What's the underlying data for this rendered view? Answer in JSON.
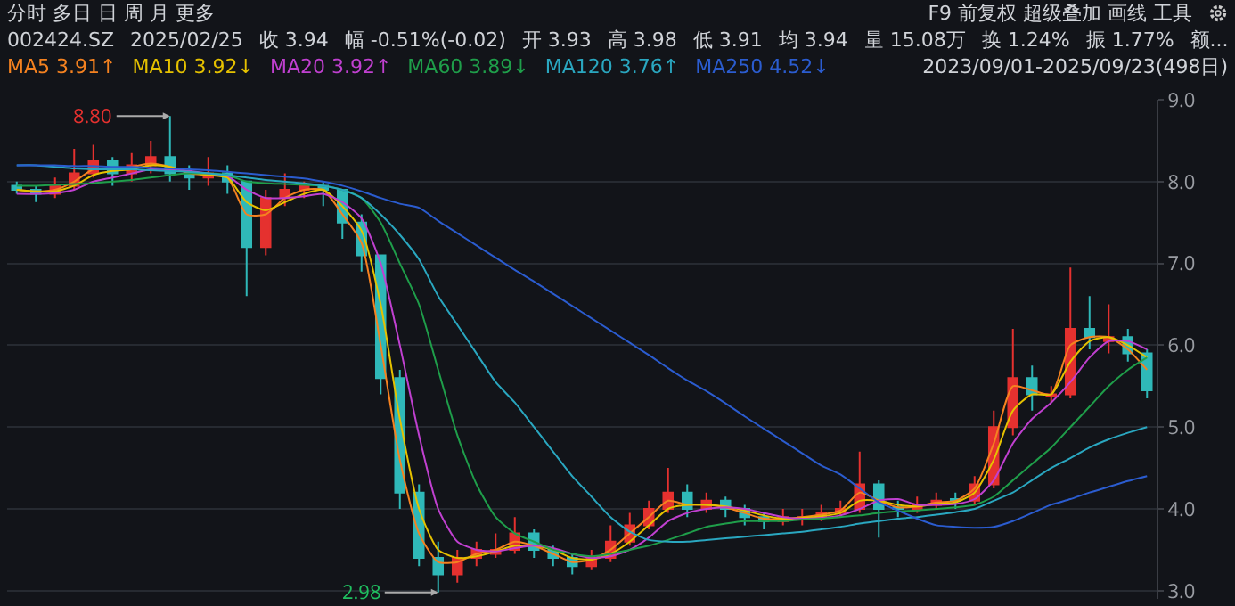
{
  "chart_data": {
    "type": "candlestick",
    "title": "002424.SZ",
    "subtitle": "2023/09/01-2025/09/23(498日)",
    "annotations": [
      "分时  多日  日  周  月  更多",
      "F9  前复权  超级叠加  画线  工具",
      "2025/02/25",
      "收 3.94",
      "幅 -0.51%(-0.02)",
      "开 3.93",
      "高 3.98",
      "低 3.91",
      "均 3.94",
      "量 15.08万",
      "换 1.24%",
      "振 1.77%",
      "额...",
      "8.80",
      "2.98"
    ],
    "categories": [
      null,
      null,
      null,
      null,
      null,
      null,
      null,
      null,
      null,
      null,
      null,
      null,
      null,
      null,
      null,
      null,
      null,
      null,
      null,
      null,
      null,
      null,
      null,
      null,
      null,
      null,
      null,
      null,
      null,
      null,
      null,
      null,
      null,
      null,
      null,
      null,
      null,
      null,
      null,
      null,
      null,
      null,
      null,
      null,
      null,
      null,
      null,
      null,
      null,
      null,
      null,
      null,
      null,
      null,
      null,
      null,
      null,
      null,
      null,
      null
    ],
    "ohlc": [
      [
        7.95,
        8.0,
        7.85,
        7.9
      ],
      [
        7.9,
        7.95,
        7.75,
        7.85
      ],
      [
        7.85,
        8.05,
        7.8,
        7.95
      ],
      [
        7.95,
        8.4,
        7.9,
        8.1
      ],
      [
        8.1,
        8.45,
        8.05,
        8.25
      ],
      [
        8.25,
        8.3,
        7.95,
        8.1
      ],
      [
        8.1,
        8.35,
        8.0,
        8.2
      ],
      [
        8.2,
        8.5,
        8.1,
        8.3
      ],
      [
        8.3,
        8.8,
        8.0,
        8.1
      ],
      [
        8.1,
        8.2,
        7.9,
        8.05
      ],
      [
        8.05,
        8.3,
        7.95,
        8.1
      ],
      [
        8.1,
        8.2,
        7.85,
        8.0
      ],
      [
        8.0,
        8.0,
        6.6,
        7.2
      ],
      [
        7.2,
        7.9,
        7.1,
        7.8
      ],
      [
        7.8,
        8.1,
        7.7,
        7.9
      ],
      [
        7.9,
        8.0,
        7.8,
        7.95
      ],
      [
        7.95,
        8.0,
        7.7,
        7.9
      ],
      [
        7.9,
        7.9,
        7.3,
        7.5
      ],
      [
        7.5,
        7.6,
        6.9,
        7.1
      ],
      [
        7.1,
        7.1,
        5.4,
        5.6
      ],
      [
        5.6,
        5.7,
        4.0,
        4.2
      ],
      [
        4.2,
        4.3,
        3.3,
        3.4
      ],
      [
        3.4,
        3.6,
        2.98,
        3.2
      ],
      [
        3.2,
        3.5,
        3.1,
        3.4
      ],
      [
        3.4,
        3.6,
        3.3,
        3.5
      ],
      [
        3.45,
        3.7,
        3.4,
        3.5
      ],
      [
        3.5,
        3.9,
        3.45,
        3.7
      ],
      [
        3.7,
        3.75,
        3.4,
        3.5
      ],
      [
        3.5,
        3.55,
        3.3,
        3.4
      ],
      [
        3.4,
        3.45,
        3.2,
        3.3
      ],
      [
        3.3,
        3.5,
        3.25,
        3.4
      ],
      [
        3.4,
        3.8,
        3.35,
        3.6
      ],
      [
        3.6,
        3.95,
        3.55,
        3.8
      ],
      [
        3.8,
        4.1,
        3.75,
        4.0
      ],
      [
        4.0,
        4.5,
        3.95,
        4.2
      ],
      [
        4.2,
        4.3,
        3.9,
        4.0
      ],
      [
        4.0,
        4.2,
        3.95,
        4.1
      ],
      [
        4.1,
        4.15,
        3.9,
        4.0
      ],
      [
        4.0,
        4.05,
        3.8,
        3.9
      ],
      [
        3.9,
        3.95,
        3.75,
        3.85
      ],
      [
        3.85,
        4.0,
        3.8,
        3.9
      ],
      [
        3.88,
        4.0,
        3.8,
        3.9
      ],
      [
        3.9,
        4.05,
        3.85,
        3.95
      ],
      [
        3.95,
        4.1,
        3.9,
        4.0
      ],
      [
        4.0,
        4.7,
        3.95,
        4.3
      ],
      [
        4.3,
        4.35,
        3.65,
        4.0
      ],
      [
        4.02,
        4.1,
        3.9,
        4.0
      ],
      [
        4.0,
        4.15,
        3.95,
        4.05
      ],
      [
        4.05,
        4.2,
        4.0,
        4.1
      ],
      [
        4.12,
        4.2,
        4.0,
        4.1
      ],
      [
        4.1,
        4.4,
        4.05,
        4.3
      ],
      [
        4.3,
        5.2,
        4.25,
        5.0
      ],
      [
        5.0,
        6.2,
        4.9,
        5.6
      ],
      [
        5.6,
        5.75,
        5.2,
        5.4
      ],
      [
        5.38,
        5.5,
        5.3,
        5.4
      ],
      [
        5.4,
        6.95,
        5.35,
        6.2
      ],
      [
        6.2,
        6.6,
        5.95,
        6.1
      ],
      [
        6.05,
        6.5,
        5.9,
        6.1
      ],
      [
        6.1,
        6.2,
        5.8,
        5.9
      ],
      [
        5.9,
        5.95,
        5.35,
        5.45
      ]
    ],
    "colors": [
      "#2fb8b8",
      "#2fb8b8",
      "#e5312f",
      "#e5312f",
      "#e5312f",
      "#2fb8b8",
      "#e5312f",
      "#e5312f",
      "#2fb8b8",
      "#2fb8b8",
      "#e5312f",
      "#2fb8b8",
      "#2fb8b8",
      "#e5312f",
      "#e5312f",
      "#e5312f",
      "#2fb8b8",
      "#2fb8b8",
      "#2fb8b8",
      "#2fb8b8",
      "#2fb8b8",
      "#2fb8b8",
      "#2fb8b8",
      "#e5312f",
      "#e5312f",
      "#e5312f",
      "#e5312f",
      "#2fb8b8",
      "#2fb8b8",
      "#2fb8b8",
      "#e5312f",
      "#e5312f",
      "#e5312f",
      "#e5312f",
      "#e5312f",
      "#2fb8b8",
      "#e5312f",
      "#2fb8b8",
      "#2fb8b8",
      "#2fb8b8",
      "#e5312f",
      "#e5312f",
      "#e5312f",
      "#e5312f",
      "#e5312f",
      "#2fb8b8",
      "#2fb8b8",
      "#e5312f",
      "#e5312f",
      "#2fb8b8",
      "#e5312f",
      "#e5312f",
      "#e5312f",
      "#2fb8b8",
      "#e5312f",
      "#e5312f",
      "#2fb8b8",
      "#e5312f",
      "#2fb8b8",
      "#2fb8b8"
    ],
    "series": [
      {
        "name": "MA5 3.91↑",
        "type": "line",
        "color": "#f58220",
        "values": [
          7.9,
          7.88,
          7.9,
          8.0,
          8.15,
          8.15,
          8.18,
          8.22,
          8.18,
          8.1,
          8.08,
          8.05,
          7.6,
          7.6,
          7.8,
          7.9,
          7.9,
          7.6,
          7.25,
          6.0,
          4.6,
          3.7,
          3.35,
          3.35,
          3.45,
          3.5,
          3.6,
          3.55,
          3.45,
          3.35,
          3.38,
          3.5,
          3.7,
          3.9,
          4.1,
          4.05,
          4.05,
          4.02,
          3.95,
          3.88,
          3.88,
          3.9,
          3.93,
          3.98,
          4.2,
          4.1,
          4.02,
          4.03,
          4.08,
          4.1,
          4.25,
          4.8,
          5.5,
          5.45,
          5.4,
          6.0,
          6.1,
          6.1,
          5.95,
          5.7
        ]
      },
      {
        "name": "MA10 3.92↓",
        "type": "line",
        "color": "#e5c100",
        "values": [
          7.9,
          7.88,
          7.88,
          7.95,
          8.08,
          8.13,
          8.15,
          8.2,
          8.18,
          8.12,
          8.08,
          8.05,
          7.75,
          7.65,
          7.75,
          7.85,
          7.9,
          7.7,
          7.4,
          6.5,
          5.1,
          4.0,
          3.5,
          3.4,
          3.42,
          3.48,
          3.55,
          3.55,
          3.5,
          3.4,
          3.38,
          3.45,
          3.6,
          3.8,
          4.0,
          4.05,
          4.05,
          4.03,
          3.98,
          3.92,
          3.88,
          3.89,
          3.91,
          3.95,
          4.1,
          4.1,
          4.05,
          4.03,
          4.06,
          4.08,
          4.2,
          4.6,
          5.2,
          5.4,
          5.4,
          5.8,
          6.05,
          6.1,
          6.0,
          5.85
        ]
      },
      {
        "name": "MA20 3.92↑",
        "type": "line",
        "color": "#c040d0",
        "values": [
          7.85,
          7.85,
          7.86,
          7.9,
          8.0,
          8.05,
          8.1,
          8.15,
          8.15,
          8.13,
          8.1,
          8.07,
          7.9,
          7.8,
          7.8,
          7.82,
          7.85,
          7.75,
          7.55,
          7.0,
          6.0,
          4.9,
          4.0,
          3.6,
          3.5,
          3.48,
          3.52,
          3.55,
          3.52,
          3.45,
          3.4,
          3.42,
          3.5,
          3.65,
          3.85,
          3.95,
          4.0,
          4.02,
          4.0,
          3.95,
          3.9,
          3.88,
          3.89,
          3.92,
          4.0,
          4.1,
          4.12,
          4.05,
          4.05,
          4.06,
          4.12,
          4.35,
          4.8,
          5.1,
          5.3,
          5.55,
          5.85,
          6.05,
          6.05,
          5.95
        ]
      },
      {
        "name": "MA60 3.89↓",
        "type": "line",
        "color": "#1f9e4a",
        "values": [
          7.95,
          7.95,
          7.96,
          7.97,
          7.98,
          8.0,
          8.02,
          8.05,
          8.08,
          8.1,
          8.1,
          8.08,
          8.0,
          7.98,
          7.97,
          7.96,
          7.95,
          7.9,
          7.8,
          7.5,
          7.0,
          6.5,
          5.7,
          4.9,
          4.3,
          3.9,
          3.7,
          3.6,
          3.5,
          3.45,
          3.42,
          3.45,
          3.5,
          3.55,
          3.62,
          3.7,
          3.78,
          3.82,
          3.85,
          3.85,
          3.85,
          3.87,
          3.88,
          3.9,
          3.92,
          3.95,
          3.97,
          3.98,
          4.0,
          4.02,
          4.05,
          4.15,
          4.35,
          4.55,
          4.75,
          5.0,
          5.25,
          5.5,
          5.7,
          5.85
        ]
      },
      {
        "name": "MA120 3.76↑",
        "type": "line",
        "color": "#2aa7c0",
        "values": [
          8.2,
          8.2,
          8.18,
          8.16,
          8.15,
          8.15,
          8.15,
          8.14,
          8.13,
          8.12,
          8.1,
          8.08,
          8.05,
          8.02,
          8.0,
          7.98,
          7.95,
          7.9,
          7.8,
          7.6,
          7.35,
          7.05,
          6.6,
          6.25,
          5.9,
          5.55,
          5.3,
          5.0,
          4.7,
          4.4,
          4.15,
          3.9,
          3.72,
          3.62,
          3.6,
          3.6,
          3.62,
          3.64,
          3.66,
          3.68,
          3.7,
          3.72,
          3.75,
          3.78,
          3.82,
          3.85,
          3.88,
          3.9,
          3.93,
          3.96,
          4.0,
          4.1,
          4.2,
          4.35,
          4.5,
          4.62,
          4.75,
          4.85,
          4.93,
          5.0
        ]
      },
      {
        "name": "MA250 4.52↓",
        "type": "line",
        "color": "#2b5ccf",
        "values": [
          8.2,
          8.2,
          8.2,
          8.19,
          8.19,
          8.18,
          8.18,
          8.17,
          8.16,
          8.15,
          8.14,
          8.12,
          8.1,
          8.08,
          8.06,
          8.04,
          8.0,
          7.95,
          7.88,
          7.8,
          7.73,
          7.68,
          7.52,
          7.37,
          7.22,
          7.07,
          6.92,
          6.78,
          6.63,
          6.48,
          6.33,
          6.18,
          6.03,
          5.88,
          5.72,
          5.57,
          5.44,
          5.29,
          5.13,
          4.98,
          4.83,
          4.68,
          4.53,
          4.42,
          4.25,
          4.08,
          3.98,
          3.88,
          3.8,
          3.78,
          3.77,
          3.78,
          3.85,
          3.95,
          4.05,
          4.12,
          4.2,
          4.27,
          4.34,
          4.4
        ]
      }
    ],
    "ylim": [
      2.9,
      9
    ],
    "yticks": [
      {
        "value": 3,
        "label": "3.0"
      },
      {
        "value": 4,
        "label": "4.0"
      },
      {
        "value": 5,
        "label": "5.0"
      },
      {
        "value": 6,
        "label": "6.0"
      },
      {
        "value": 7,
        "label": "7.0"
      },
      {
        "value": 8,
        "label": "8.0"
      },
      {
        "value": 9,
        "label": "9.0"
      }
    ],
    "grid": true,
    "legend": "top left"
  }
}
